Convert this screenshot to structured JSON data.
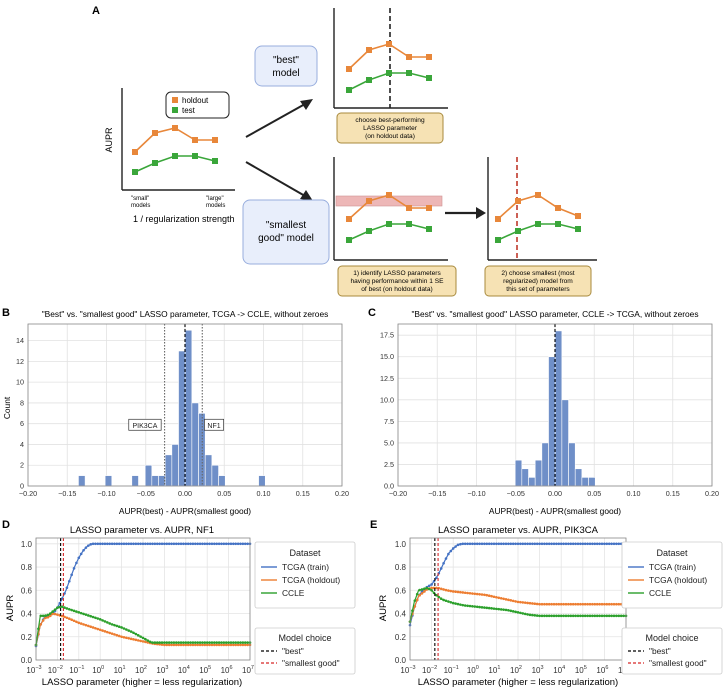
{
  "panels": {
    "A": {
      "label": "A",
      "schematic": {
        "ylabel": "AUPR",
        "xlabel": "1 / regularization strength",
        "x_left_label": [
          "\"small\"",
          "models"
        ],
        "x_right_label": [
          "\"large\"",
          "models"
        ],
        "legend": [
          "holdout",
          "test"
        ]
      },
      "best_box": [
        "\"best\"",
        "model"
      ],
      "smallest_box": [
        "\"smallest",
        "good\" model"
      ],
      "note_best": [
        "choose best-performing",
        "LASSO parameter",
        "(on holdout data)"
      ],
      "note_identify": [
        "1) identify LASSO parameters",
        "having performance within 1 SE",
        "of best (on holdout data)"
      ],
      "note_choose": [
        "2) choose smallest (most",
        "regularized) model from",
        "this set of parameters"
      ],
      "colors": {
        "holdout": "#e8873a",
        "test": "#3aa63a",
        "box_fill": "#e8eefb",
        "box_stroke": "#98aede",
        "note_fill": "#f6e2b4",
        "note_stroke": "#a88a3c",
        "band": "#e8a0a0"
      }
    },
    "B": {
      "label": "B"
    },
    "C": {
      "label": "C"
    },
    "D": {
      "label": "D"
    },
    "E": {
      "label": "E"
    }
  },
  "legend_lasso": {
    "dataset_title": "Dataset",
    "datasets": [
      "TCGA (train)",
      "TCGA (holdout)",
      "CCLE"
    ],
    "choice_title": "Model choice",
    "choices": [
      "\"best\"",
      "\"smallest good\""
    ],
    "colors": {
      "train": "#4472c4",
      "holdout": "#ed7d31",
      "ccle": "#2ca02c",
      "best": "#000000",
      "smallest": "#d62728"
    }
  },
  "chart_data": [
    {
      "type": "bar",
      "panel": "B",
      "title": "\"Best\" vs. \"smallest good\" LASSO parameter, TCGA -> CCLE, without zeroes",
      "xlabel": "AUPR(best) - AUPR(smallest good)",
      "ylabel": "Count",
      "xlim": [
        -0.2,
        0.2
      ],
      "ylim": [
        0,
        15.6
      ],
      "xticks": [
        -0.2,
        -0.15,
        -0.1,
        -0.05,
        0.0,
        0.05,
        0.1,
        0.15,
        0.2
      ],
      "xtick_labels": [
        "−0.20",
        "−0.15",
        "−0.10",
        "−0.05",
        "0.00",
        "0.05",
        "0.10",
        "0.15",
        "0.20"
      ],
      "yticks": [
        0,
        2,
        4,
        6,
        8,
        10,
        12,
        14
      ],
      "ytick_labels": [
        "0",
        "2",
        "4",
        "6",
        "8",
        "10",
        "12",
        "14"
      ],
      "bin_width": 0.0085,
      "bins": [
        {
          "x": -0.1315,
          "count": 1
        },
        {
          "x": -0.0975,
          "count": 1
        },
        {
          "x": -0.0635,
          "count": 1
        },
        {
          "x": -0.0465,
          "count": 2
        },
        {
          "x": -0.038,
          "count": 1
        },
        {
          "x": -0.0295,
          "count": 1
        },
        {
          "x": -0.021,
          "count": 3
        },
        {
          "x": -0.0125,
          "count": 4
        },
        {
          "x": -0.004,
          "count": 13
        },
        {
          "x": 0.0045,
          "count": 15
        },
        {
          "x": 0.013,
          "count": 8
        },
        {
          "x": 0.0215,
          "count": 7
        },
        {
          "x": 0.03,
          "count": 3
        },
        {
          "x": 0.0385,
          "count": 2
        },
        {
          "x": 0.047,
          "count": 1
        },
        {
          "x": 0.098,
          "count": 1
        }
      ],
      "vlines": [
        {
          "x": -0.026,
          "style": "dotted"
        },
        {
          "x": 0.0,
          "style": "dashed"
        },
        {
          "x": 0.022,
          "style": "dotted"
        }
      ],
      "annotations": [
        {
          "text": "PIK3CA",
          "x": -0.051,
          "y": 5.8
        },
        {
          "text": "NF1",
          "x": 0.037,
          "y": 5.8
        }
      ],
      "grid": true
    },
    {
      "type": "bar",
      "panel": "C",
      "title": "\"Best\" vs. \"smallest good\" LASSO parameter, CCLE -> TCGA, without zeroes",
      "xlabel": "AUPR(best) - AUPR(smallest good)",
      "ylabel": "",
      "xlim": [
        -0.2,
        0.2
      ],
      "ylim": [
        0,
        18.8
      ],
      "xticks": [
        -0.2,
        -0.15,
        -0.1,
        -0.05,
        0.0,
        0.05,
        0.1,
        0.15,
        0.2
      ],
      "xtick_labels": [
        "−0.20",
        "−0.15",
        "−0.10",
        "−0.05",
        "0.00",
        "0.05",
        "0.10",
        "0.15",
        "0.20"
      ],
      "yticks": [
        0,
        2.5,
        5,
        7.5,
        10,
        12.5,
        15,
        17.5
      ],
      "ytick_labels": [
        "0.0",
        "2.5",
        "5.0",
        "7.5",
        "10.0",
        "12.5",
        "15.0",
        "17.5"
      ],
      "bin_width": 0.0085,
      "bins": [
        {
          "x": -0.0465,
          "count": 3
        },
        {
          "x": -0.038,
          "count": 2
        },
        {
          "x": -0.0295,
          "count": 1
        },
        {
          "x": -0.021,
          "count": 3
        },
        {
          "x": -0.0125,
          "count": 5
        },
        {
          "x": -0.004,
          "count": 15
        },
        {
          "x": 0.0045,
          "count": 18
        },
        {
          "x": 0.013,
          "count": 10
        },
        {
          "x": 0.0215,
          "count": 5
        },
        {
          "x": 0.03,
          "count": 2
        },
        {
          "x": 0.0385,
          "count": 1
        },
        {
          "x": 0.047,
          "count": 1
        }
      ],
      "vlines": [
        {
          "x": 0.0,
          "style": "dashed"
        }
      ],
      "annotations": [],
      "grid": true
    },
    {
      "type": "line",
      "panel": "D",
      "title": "LASSO parameter vs. AUPR, NF1",
      "xlabel": "LASSO parameter (higher = less regularization)",
      "ylabel": "AUPR",
      "xscale": "log",
      "xlim_exp": [
        -3,
        7
      ],
      "ylim": [
        0,
        1.05
      ],
      "yticks": [
        0,
        0.2,
        0.4,
        0.6,
        0.8,
        1.0
      ],
      "ytick_labels": [
        "0.0",
        "0.2",
        "0.4",
        "0.6",
        "0.8",
        "1.0"
      ],
      "xtick_exps": [
        -3,
        -2,
        -1,
        0,
        1,
        2,
        3,
        4,
        5,
        6,
        7
      ],
      "xtick_base": "10",
      "series": [
        {
          "name": "TCGA (train)",
          "key": "train",
          "points": [
            [
              -3,
              0.12
            ],
            [
              -2.8,
              0.3
            ],
            [
              -2.6,
              0.37
            ],
            [
              -2.4,
              0.38
            ],
            [
              -2.2,
              0.4
            ],
            [
              -2,
              0.45
            ],
            [
              -1.8,
              0.52
            ],
            [
              -1.6,
              0.6
            ],
            [
              -1.4,
              0.7
            ],
            [
              -1.2,
              0.8
            ],
            [
              -1,
              0.88
            ],
            [
              -0.8,
              0.94
            ],
            [
              -0.6,
              0.98
            ],
            [
              -0.4,
              1.0
            ],
            [
              7,
              1.0
            ]
          ]
        },
        {
          "name": "TCGA (holdout)",
          "key": "holdout",
          "points": [
            [
              -3,
              0.13
            ],
            [
              -2.8,
              0.3
            ],
            [
              -2.6,
              0.36
            ],
            [
              -2.4,
              0.37
            ],
            [
              -2.2,
              0.4
            ],
            [
              -2,
              0.39
            ],
            [
              -1.8,
              0.38
            ],
            [
              -1.5,
              0.36
            ],
            [
              -1,
              0.32
            ],
            [
              -0.5,
              0.29
            ],
            [
              0,
              0.26
            ],
            [
              0.5,
              0.23
            ],
            [
              1,
              0.2
            ],
            [
              1.5,
              0.18
            ],
            [
              2,
              0.16
            ],
            [
              2.5,
              0.14
            ],
            [
              3,
              0.13
            ],
            [
              7,
              0.13
            ]
          ]
        },
        {
          "name": "CCLE",
          "key": "ccle",
          "points": [
            [
              -3,
              0.13
            ],
            [
              -2.8,
              0.38
            ],
            [
              -2.6,
              0.38
            ],
            [
              -2.4,
              0.39
            ],
            [
              -2.2,
              0.42
            ],
            [
              -2,
              0.45
            ],
            [
              -1.8,
              0.46
            ],
            [
              -1.5,
              0.44
            ],
            [
              -1,
              0.41
            ],
            [
              -0.5,
              0.38
            ],
            [
              0,
              0.35
            ],
            [
              0.5,
              0.31
            ],
            [
              1,
              0.28
            ],
            [
              1.5,
              0.24
            ],
            [
              2,
              0.19
            ],
            [
              2.4,
              0.15
            ],
            [
              3,
              0.15
            ],
            [
              7,
              0.15
            ]
          ]
        }
      ],
      "vlines": [
        {
          "x_exp": -1.85,
          "key": "best"
        },
        {
          "x_exp": -1.72,
          "key": "smallest"
        }
      ],
      "grid": true
    },
    {
      "type": "line",
      "panel": "E",
      "title": "LASSO parameter vs. AUPR, PIK3CA",
      "xlabel": "LASSO parameter (higher = less regularization)",
      "ylabel": "AUPR",
      "xscale": "log",
      "xlim_exp": [
        -3,
        7
      ],
      "ylim": [
        0,
        1.05
      ],
      "yticks": [
        0,
        0.2,
        0.4,
        0.6,
        0.8,
        1.0
      ],
      "ytick_labels": [
        "0.0",
        "0.2",
        "0.4",
        "0.6",
        "0.8",
        "1.0"
      ],
      "xtick_exps": [
        -3,
        -2,
        -1,
        0,
        1,
        2,
        3,
        4,
        5,
        6,
        7
      ],
      "xtick_base": "10",
      "series": [
        {
          "name": "TCGA (train)",
          "key": "train",
          "points": [
            [
              -3,
              0.3
            ],
            [
              -2.8,
              0.45
            ],
            [
              -2.6,
              0.55
            ],
            [
              -2.4,
              0.6
            ],
            [
              -2.2,
              0.63
            ],
            [
              -2,
              0.65
            ],
            [
              -1.8,
              0.7
            ],
            [
              -1.6,
              0.77
            ],
            [
              -1.4,
              0.85
            ],
            [
              -1.2,
              0.92
            ],
            [
              -1,
              0.96
            ],
            [
              -0.8,
              0.99
            ],
            [
              -0.6,
              1.0
            ],
            [
              7,
              1.0
            ]
          ]
        },
        {
          "name": "TCGA (holdout)",
          "key": "holdout",
          "points": [
            [
              -3,
              0.33
            ],
            [
              -2.8,
              0.45
            ],
            [
              -2.6,
              0.55
            ],
            [
              -2.4,
              0.58
            ],
            [
              -2.2,
              0.61
            ],
            [
              -2,
              0.62
            ],
            [
              -1.7,
              0.62
            ],
            [
              -1.3,
              0.6
            ],
            [
              -1,
              0.59
            ],
            [
              -0.5,
              0.58
            ],
            [
              0,
              0.57
            ],
            [
              0.5,
              0.56
            ],
            [
              1,
              0.54
            ],
            [
              1.5,
              0.52
            ],
            [
              2,
              0.5
            ],
            [
              2.5,
              0.49
            ],
            [
              3,
              0.48
            ],
            [
              7,
              0.48
            ]
          ]
        },
        {
          "name": "CCLE",
          "key": "ccle",
          "points": [
            [
              -3,
              0.33
            ],
            [
              -2.8,
              0.5
            ],
            [
              -2.6,
              0.6
            ],
            [
              -2.4,
              0.61
            ],
            [
              -2.2,
              0.62
            ],
            [
              -2,
              0.6
            ],
            [
              -1.8,
              0.56
            ],
            [
              -1.5,
              0.52
            ],
            [
              -1,
              0.49
            ],
            [
              -0.5,
              0.47
            ],
            [
              0,
              0.46
            ],
            [
              0.5,
              0.45
            ],
            [
              1,
              0.44
            ],
            [
              1.5,
              0.43
            ],
            [
              2,
              0.41
            ],
            [
              2.5,
              0.39
            ],
            [
              3,
              0.38
            ],
            [
              7,
              0.38
            ]
          ]
        }
      ],
      "vlines": [
        {
          "x_exp": -1.85,
          "key": "best"
        },
        {
          "x_exp": -1.7,
          "key": "smallest"
        }
      ],
      "grid": true
    }
  ]
}
